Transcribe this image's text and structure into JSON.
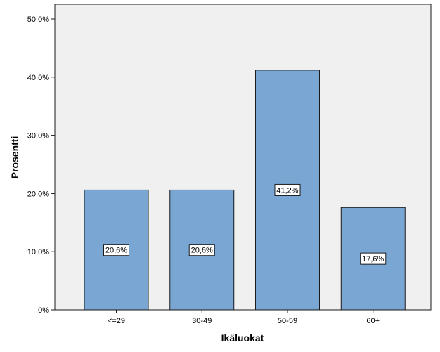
{
  "chart_data": {
    "type": "bar",
    "xlabel": "Ikäluokat",
    "ylabel": "Prosentti",
    "categories": [
      "<=29",
      "30-49",
      "50-59",
      "60+"
    ],
    "values": [
      20.6,
      20.6,
      41.2,
      17.6
    ],
    "data_labels": [
      "20,6%",
      "20,6%",
      "41,2%",
      "17,6%"
    ],
    "ylim": [
      0,
      50
    ],
    "yticks": [
      0,
      10,
      20,
      30,
      40,
      50
    ],
    "ytick_labels": [
      ",0%",
      "10,0%",
      "20,0%",
      "30,0%",
      "40,0%",
      "50,0%"
    ],
    "grid": false,
    "colors": {
      "plot_background": "#f0f0f0",
      "bar_fill": "#79a6d2",
      "bar_stroke": "#1a1a1a",
      "label_box": "#ffffff"
    }
  }
}
